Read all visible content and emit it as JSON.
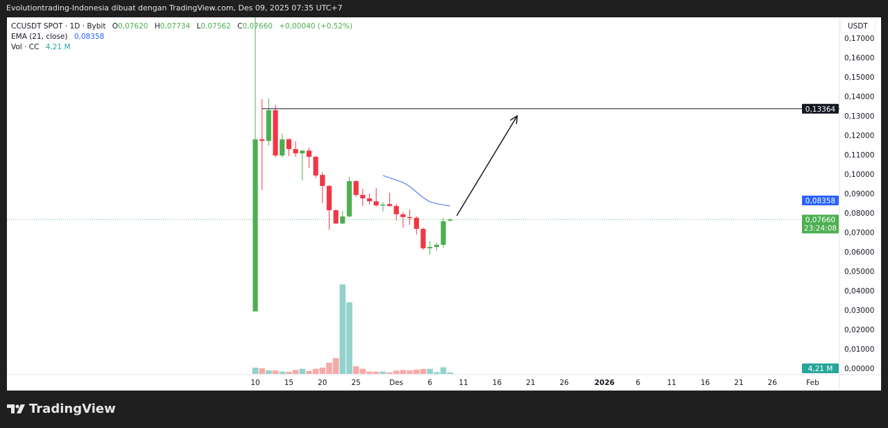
{
  "header": {
    "title": "Evolutiontrading-Indonesia dibuat dengan TradingView.com, Des 09, 2025 07:35 UTC+7"
  },
  "legend": {
    "symbol": "CCUSDT SPOT · 1D · Bybit",
    "o_label": "O",
    "o": "0,07620",
    "h_label": "H",
    "h": "0,07734",
    "l_label": "L",
    "l": "0,07562",
    "c_label": "C",
    "c": "0,07660",
    "change": "+0,00040 (+0,52%)",
    "ema_label": "EMA (21, close)",
    "ema_value": "0,08358",
    "vol_label": "Vol · CC",
    "vol_value": "4,21 M"
  },
  "price_axis": {
    "currency": "USDT",
    "ticks": [
      "0,17000",
      "0,16000",
      "0,15000",
      "0,14000",
      "0,13000",
      "0,12000",
      "0,11000",
      "0,10000",
      "0,09000",
      "0,08000",
      "0,07000",
      "0,06000",
      "0,05000",
      "0,04000",
      "0,03000",
      "0,02000",
      "0,01000",
      "0,00000"
    ],
    "tick_values": [
      0.17,
      0.16,
      0.15,
      0.14,
      0.13,
      0.12,
      0.11,
      0.1,
      0.09,
      0.08,
      0.07,
      0.06,
      0.05,
      0.04,
      0.03,
      0.02,
      0.01,
      0.0
    ],
    "badges": {
      "hline": "0,13364",
      "ema": "0,08358",
      "last": "0,07660",
      "countdown": "23:24:08",
      "volume": "4,21 M"
    }
  },
  "time_axis": {
    "ticks": [
      {
        "label": "10",
        "date": "2025-11-10"
      },
      {
        "label": "15",
        "date": "2025-11-15"
      },
      {
        "label": "20",
        "date": "2025-11-20"
      },
      {
        "label": "25",
        "date": "2025-11-25"
      },
      {
        "label": "Des",
        "date": "2025-12-01"
      },
      {
        "label": "6",
        "date": "2025-12-06"
      },
      {
        "label": "11",
        "date": "2025-12-11"
      },
      {
        "label": "16",
        "date": "2025-12-16"
      },
      {
        "label": "21",
        "date": "2025-12-21"
      },
      {
        "label": "26",
        "date": "2025-12-26"
      },
      {
        "label": "2026",
        "date": "2026-01-01",
        "bold": true
      },
      {
        "label": "6",
        "date": "2026-01-06"
      },
      {
        "label": "11",
        "date": "2026-01-11"
      },
      {
        "label": "16",
        "date": "2026-01-16"
      },
      {
        "label": "21",
        "date": "2026-01-21"
      },
      {
        "label": "26",
        "date": "2026-01-26"
      },
      {
        "label": "Feb",
        "date": "2026-02-01"
      }
    ]
  },
  "colors": {
    "up": "#4caf50",
    "down": "#f23645",
    "vol_up": "#92d2cc",
    "vol_down": "#f7a9a7",
    "ema": "#5b7ef0",
    "badge_ema": "#2962ff",
    "badge_last": "#4caf50",
    "badge_vol": "#26a69a",
    "hline": "#131722"
  },
  "chart_data": {
    "type": "candlestick",
    "interval": "1D",
    "candles": [
      {
        "d": "2025-11-10",
        "o": 0.0293,
        "h": 0.1807,
        "l": 0.0293,
        "c": 0.1179,
        "v": 19
      },
      {
        "d": "2025-11-11",
        "o": 0.1179,
        "h": 0.1386,
        "l": 0.0918,
        "c": 0.1171,
        "v": 17
      },
      {
        "d": "2025-11-12",
        "o": 0.1171,
        "h": 0.139,
        "l": 0.1146,
        "c": 0.1329,
        "v": 10.5
      },
      {
        "d": "2025-11-13",
        "o": 0.1329,
        "h": 0.1357,
        "l": 0.1086,
        "c": 0.1096,
        "v": 10.5
      },
      {
        "d": "2025-11-14",
        "o": 0.1096,
        "h": 0.121,
        "l": 0.1086,
        "c": 0.1179,
        "v": 7
      },
      {
        "d": "2025-11-15",
        "o": 0.118,
        "h": 0.1182,
        "l": 0.1093,
        "c": 0.1129,
        "v": 6.3
      },
      {
        "d": "2025-11-16",
        "o": 0.1129,
        "h": 0.117,
        "l": 0.109,
        "c": 0.1107,
        "v": 12
      },
      {
        "d": "2025-11-17",
        "o": 0.1107,
        "h": 0.1125,
        "l": 0.0968,
        "c": 0.1121,
        "v": 15.4
      },
      {
        "d": "2025-11-18",
        "o": 0.1121,
        "h": 0.1136,
        "l": 0.1032,
        "c": 0.1089,
        "v": 9
      },
      {
        "d": "2025-11-19",
        "o": 0.1089,
        "h": 0.1096,
        "l": 0.0979,
        "c": 0.0993,
        "v": 15.4
      },
      {
        "d": "2025-11-20",
        "o": 0.0996,
        "h": 0.1011,
        "l": 0.085,
        "c": 0.0939,
        "v": 19
      },
      {
        "d": "2025-11-21",
        "o": 0.0939,
        "h": 0.0943,
        "l": 0.0714,
        "c": 0.0814,
        "v": 34
      },
      {
        "d": "2025-11-22",
        "o": 0.0814,
        "h": 0.0818,
        "l": 0.0743,
        "c": 0.0746,
        "v": 48
      },
      {
        "d": "2025-11-23",
        "o": 0.0746,
        "h": 0.0811,
        "l": 0.0743,
        "c": 0.0782,
        "v": 271
      },
      {
        "d": "2025-11-24",
        "o": 0.0782,
        "h": 0.0986,
        "l": 0.0778,
        "c": 0.0964,
        "v": 217
      },
      {
        "d": "2025-11-25",
        "o": 0.0964,
        "h": 0.0968,
        "l": 0.0882,
        "c": 0.0893,
        "v": 23
      },
      {
        "d": "2025-11-26",
        "o": 0.0893,
        "h": 0.0925,
        "l": 0.0836,
        "c": 0.0875,
        "v": 15.4
      },
      {
        "d": "2025-11-27",
        "o": 0.0875,
        "h": 0.09,
        "l": 0.0843,
        "c": 0.086,
        "v": 7
      },
      {
        "d": "2025-11-28",
        "o": 0.086,
        "h": 0.0929,
        "l": 0.0832,
        "c": 0.0839,
        "v": 7
      },
      {
        "d": "2025-11-29",
        "o": 0.0839,
        "h": 0.0857,
        "l": 0.0807,
        "c": 0.0843,
        "v": 7
      },
      {
        "d": "2025-11-30",
        "o": 0.0846,
        "h": 0.0904,
        "l": 0.0832,
        "c": 0.0836,
        "v": 5
      },
      {
        "d": "2025-12-01",
        "o": 0.0836,
        "h": 0.0846,
        "l": 0.0761,
        "c": 0.0793,
        "v": 10
      },
      {
        "d": "2025-12-02",
        "o": 0.0793,
        "h": 0.0804,
        "l": 0.0725,
        "c": 0.0779,
        "v": 12
      },
      {
        "d": "2025-12-03",
        "o": 0.0779,
        "h": 0.0818,
        "l": 0.0739,
        "c": 0.0775,
        "v": 10.5
      },
      {
        "d": "2025-12-04",
        "o": 0.0775,
        "h": 0.0782,
        "l": 0.0689,
        "c": 0.0718,
        "v": 13
      },
      {
        "d": "2025-12-05",
        "o": 0.0718,
        "h": 0.0725,
        "l": 0.0611,
        "c": 0.0618,
        "v": 15
      },
      {
        "d": "2025-12-06",
        "o": 0.0618,
        "h": 0.0654,
        "l": 0.0586,
        "c": 0.0625,
        "v": 15.4
      },
      {
        "d": "2025-12-07",
        "o": 0.0625,
        "h": 0.0646,
        "l": 0.0607,
        "c": 0.0636,
        "v": 5.6
      },
      {
        "d": "2025-12-08",
        "o": 0.0636,
        "h": 0.0775,
        "l": 0.0621,
        "c": 0.0757,
        "v": 20
      },
      {
        "d": "2025-12-09",
        "o": 0.0762,
        "h": 0.07734,
        "l": 0.07562,
        "c": 0.0766,
        "v": 4.21
      }
    ],
    "volume_unit": "M",
    "ema": [
      {
        "d": "2025-11-29",
        "v": 0.0993
      },
      {
        "d": "2025-12-02",
        "v": 0.0957
      },
      {
        "d": "2025-12-03",
        "v": 0.0936
      },
      {
        "d": "2025-12-05",
        "v": 0.0879
      },
      {
        "d": "2025-12-06",
        "v": 0.0857
      },
      {
        "d": "2025-12-07",
        "v": 0.0848
      },
      {
        "d": "2025-12-09",
        "v": 0.08358
      }
    ],
    "horizontal_line": 0.13364,
    "arrow": {
      "from": {
        "d": "2025-12-10",
        "p": 0.0786
      },
      "to": {
        "d": "2025-12-19",
        "p": 0.13
      }
    },
    "ylim": [
      0,
      0.17
    ],
    "grid": false
  }
}
